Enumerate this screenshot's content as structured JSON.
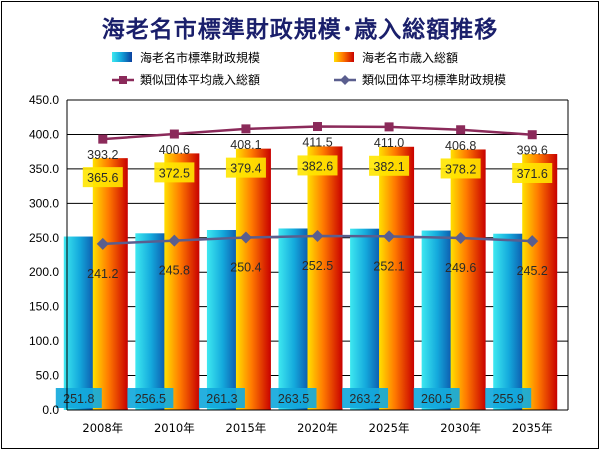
{
  "title": "海老名市標準財政規模･歳入総額推移",
  "chart_data": {
    "type": "bar",
    "categories": [
      "2008年",
      "2010年",
      "2015年",
      "2020年",
      "2025年",
      "2030年",
      "2035年"
    ],
    "ylim": [
      0,
      450
    ],
    "yticks": [
      "0.0",
      "50.0",
      "100.0",
      "150.0",
      "200.0",
      "250.0",
      "300.0",
      "350.0",
      "400.0",
      "450.0"
    ],
    "grid": true,
    "legend_position": "top",
    "series": [
      {
        "name": "海老名市標準財政規模",
        "kind": "bar",
        "values": [
          251.8,
          256.5,
          261.3,
          263.5,
          263.2,
          260.5,
          255.9
        ],
        "labels": [
          "251.8",
          "256.5",
          "261.3",
          "263.5",
          "263.2",
          "260.5",
          "255.9"
        ]
      },
      {
        "name": "海老名市歳入総額",
        "kind": "bar",
        "values": [
          365.6,
          372.5,
          379.4,
          382.6,
          382.1,
          378.2,
          371.6
        ],
        "labels": [
          "365.6",
          "372.5",
          "379.4",
          "382.6",
          "382.1",
          "378.2",
          "371.6"
        ]
      },
      {
        "name": "類似団体平均歳入総額",
        "kind": "line",
        "values": [
          393.2,
          400.6,
          408.1,
          411.5,
          411.0,
          406.8,
          399.6
        ],
        "labels": [
          "393.2",
          "400.6",
          "408.1",
          "411.5",
          "411.0",
          "406.8",
          "399.6"
        ]
      },
      {
        "name": "類似団体平均標準財政規模",
        "kind": "line",
        "values": [
          241.2,
          245.8,
          250.4,
          252.5,
          252.1,
          249.6,
          245.2
        ],
        "labels": [
          "241.2",
          "245.8",
          "250.4",
          "252.5",
          "252.1",
          "249.6",
          "245.2"
        ]
      }
    ]
  },
  "colors": {
    "bar1_light": "#3ee8f0",
    "bar1_mid": "#14a9dc",
    "bar1_dark": "#0a3f9e",
    "bar2_light": "#ffe000",
    "bar2_mid": "#ff7a00",
    "bar2_dark": "#c80000",
    "line1": "#8b2a5a",
    "line2": "#5a5e8e"
  }
}
